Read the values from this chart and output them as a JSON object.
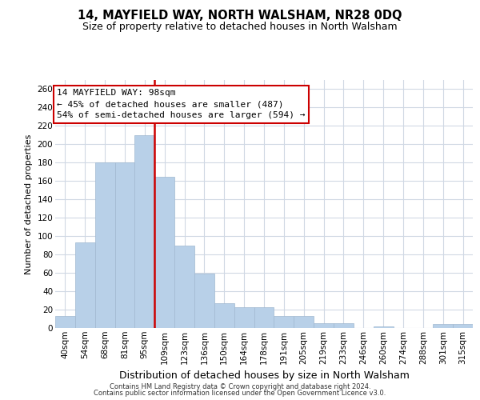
{
  "title": "14, MAYFIELD WAY, NORTH WALSHAM, NR28 0DQ",
  "subtitle": "Size of property relative to detached houses in North Walsham",
  "xlabel": "Distribution of detached houses by size in North Walsham",
  "ylabel": "Number of detached properties",
  "bar_labels": [
    "40sqm",
    "54sqm",
    "68sqm",
    "81sqm",
    "95sqm",
    "109sqm",
    "123sqm",
    "136sqm",
    "150sqm",
    "164sqm",
    "178sqm",
    "191sqm",
    "205sqm",
    "219sqm",
    "233sqm",
    "246sqm",
    "260sqm",
    "274sqm",
    "288sqm",
    "301sqm",
    "315sqm"
  ],
  "bar_values": [
    13,
    93,
    180,
    180,
    210,
    165,
    90,
    59,
    27,
    23,
    23,
    13,
    13,
    5,
    5,
    0,
    2,
    0,
    0,
    4,
    4
  ],
  "bar_color": "#b8d0e8",
  "highlight_color": "#cc0000",
  "vline_pos": 4.5,
  "annotation_title": "14 MAYFIELD WAY: 98sqm",
  "annotation_line1": "← 45% of detached houses are smaller (487)",
  "annotation_line2": "54% of semi-detached houses are larger (594) →",
  "annotation_box_color": "#ffffff",
  "annotation_box_edge": "#cc0000",
  "ylim": [
    0,
    270
  ],
  "yticks": [
    0,
    20,
    40,
    60,
    80,
    100,
    120,
    140,
    160,
    180,
    200,
    220,
    240,
    260
  ],
  "footer1": "Contains HM Land Registry data © Crown copyright and database right 2024.",
  "footer2": "Contains public sector information licensed under the Open Government Licence v3.0.",
  "background_color": "#ffffff",
  "grid_color": "#d0d8e4",
  "title_fontsize": 10.5,
  "subtitle_fontsize": 9,
  "ylabel_fontsize": 8,
  "xlabel_fontsize": 9,
  "tick_fontsize": 7.5,
  "annotation_fontsize": 8,
  "footer_fontsize": 6
}
